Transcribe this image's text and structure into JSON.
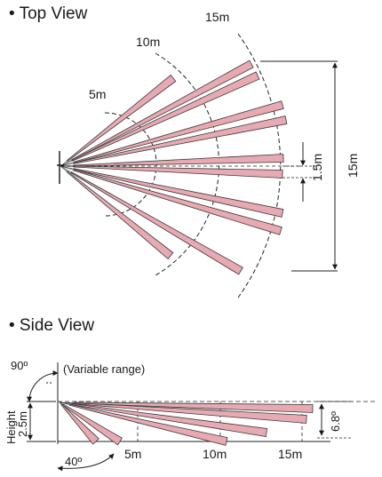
{
  "top_view": {
    "heading": "• Top View",
    "range_labels": [
      "5m",
      "10m",
      "15m"
    ],
    "gap_label": "1.5m",
    "depth_label": "15m",
    "beam_fill": "#e7a9b2",
    "beam_stroke": "#3a3a3a"
  },
  "side_view": {
    "heading": "• Side View",
    "rotation_angle": "90º",
    "variable_range": "(Variable range)",
    "height_label": "Height",
    "height_value": "2.5m",
    "spread_angle": "40º",
    "tilt_angle": "6.8º",
    "distance_labels": [
      "5m",
      "10m",
      "15m"
    ]
  }
}
